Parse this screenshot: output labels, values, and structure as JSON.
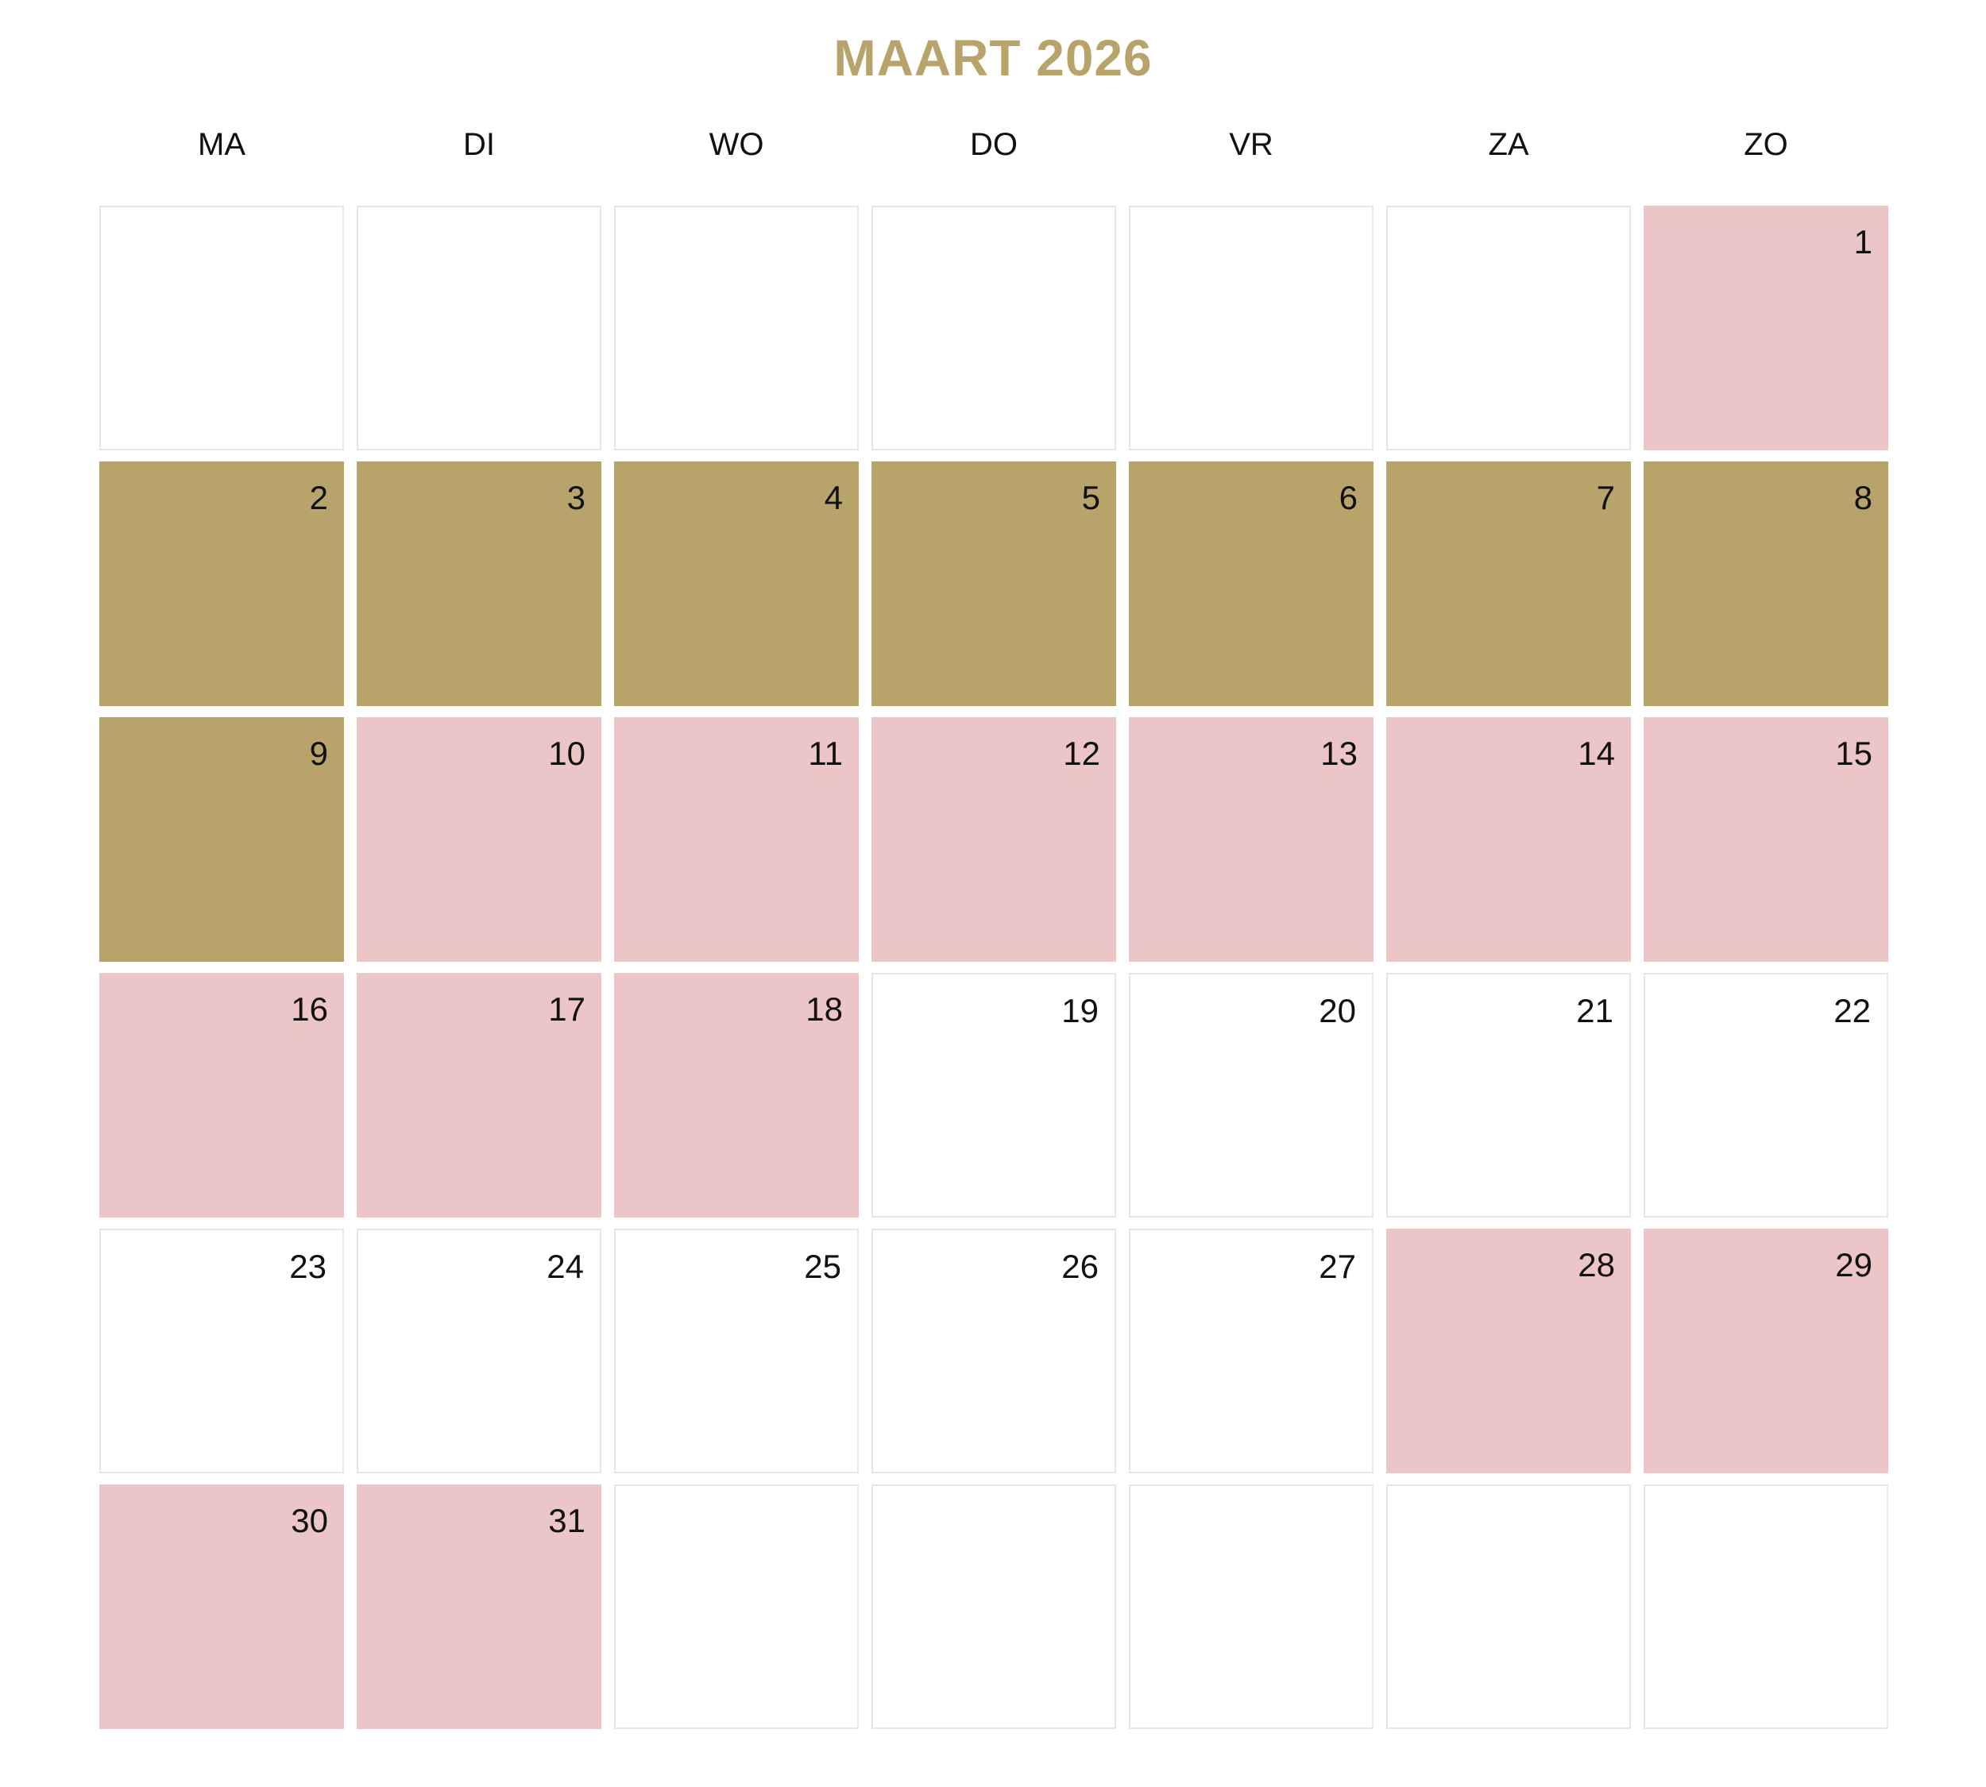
{
  "title": "MAART 2026",
  "colors": {
    "title": "#b8a46b",
    "gold": "#b8a46b",
    "pink": "#ecc5c6",
    "empty": "#ffffff"
  },
  "weekdays": [
    "MA",
    "DI",
    "WO",
    "DO",
    "VR",
    "ZA",
    "ZO"
  ],
  "leading_blanks": 6,
  "days": [
    {
      "day": "1",
      "color": "pink"
    },
    {
      "day": "2",
      "color": "gold"
    },
    {
      "day": "3",
      "color": "gold"
    },
    {
      "day": "4",
      "color": "gold"
    },
    {
      "day": "5",
      "color": "gold"
    },
    {
      "day": "6",
      "color": "gold"
    },
    {
      "day": "7",
      "color": "gold"
    },
    {
      "day": "8",
      "color": "gold"
    },
    {
      "day": "9",
      "color": "gold"
    },
    {
      "day": "10",
      "color": "pink"
    },
    {
      "day": "11",
      "color": "pink"
    },
    {
      "day": "12",
      "color": "pink"
    },
    {
      "day": "13",
      "color": "pink"
    },
    {
      "day": "14",
      "color": "pink"
    },
    {
      "day": "15",
      "color": "pink"
    },
    {
      "day": "16",
      "color": "pink"
    },
    {
      "day": "17",
      "color": "pink"
    },
    {
      "day": "18",
      "color": "pink"
    },
    {
      "day": "19",
      "color": "empty"
    },
    {
      "day": "20",
      "color": "empty"
    },
    {
      "day": "21",
      "color": "empty"
    },
    {
      "day": "22",
      "color": "empty"
    },
    {
      "day": "23",
      "color": "empty"
    },
    {
      "day": "24",
      "color": "empty"
    },
    {
      "day": "25",
      "color": "empty"
    },
    {
      "day": "26",
      "color": "empty"
    },
    {
      "day": "27",
      "color": "empty"
    },
    {
      "day": "28",
      "color": "pink"
    },
    {
      "day": "29",
      "color": "pink"
    },
    {
      "day": "30",
      "color": "pink"
    },
    {
      "day": "31",
      "color": "pink"
    }
  ],
  "trailing_blanks": 5
}
